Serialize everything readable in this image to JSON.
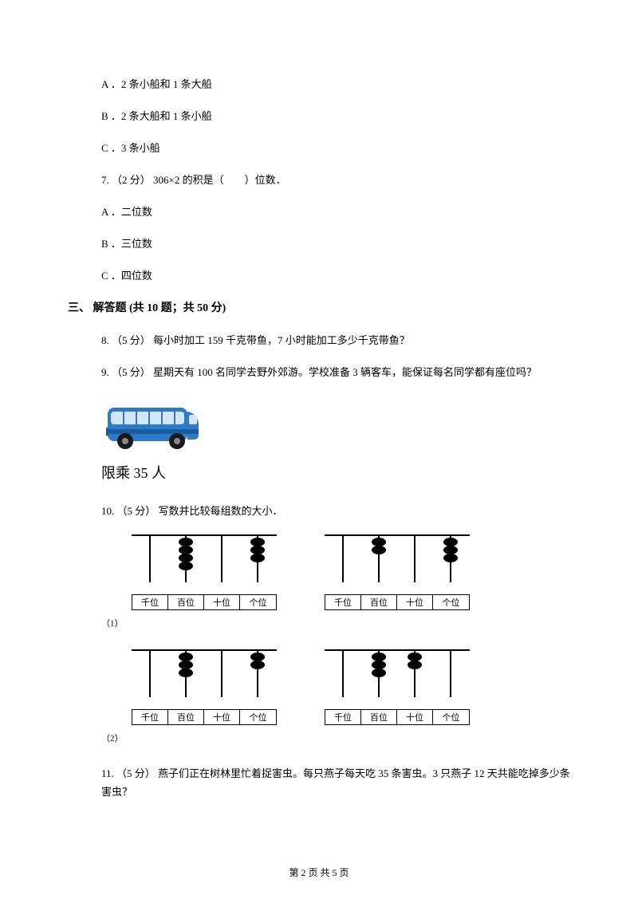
{
  "q6_options": {
    "a": "A ．2 条小船和 1 条大船",
    "b": "B ．2 条大船和 1 条小船",
    "c": "C ．3 条小船"
  },
  "q7": {
    "text": "7. （2 分） 306×2 的积是（　　）位数．",
    "options": {
      "a": "A ．二位数",
      "b": "B ．三位数",
      "c": "C ．四位数"
    }
  },
  "section3_header": "三、 解答题 (共 10 题；共 50 分)",
  "q8": "8. （5 分） 每小时加工 159 千克带鱼，7 小时能加工多少千克带鱼？",
  "q9": "9. （5 分） 星期天有 100 名同学去野外郊游。学校准备 3 辆客车，能保证每名同学都有座位吗？",
  "bus_label": "限乘 35 人",
  "q10": "10. （5 分） 写数并比较每组数的大小．",
  "sub1": "（1）",
  "sub2": "（2）",
  "q11": "11. （5 分） 燕子们正在树林里忙着捉害虫。每只燕子每天吃 35 条害虫。3 只燕子 12 天共能吃掉多少条害虫？",
  "footer": "第 2 页 共 5 页",
  "abacus_labels": [
    "千位",
    "百位",
    "十位",
    "个位"
  ],
  "abacus_data": {
    "row1": [
      [
        0,
        4,
        0,
        3
      ],
      [
        0,
        2,
        0,
        3
      ]
    ],
    "row2": [
      [
        0,
        3,
        0,
        2
      ],
      [
        0,
        3,
        2,
        0
      ]
    ]
  },
  "colors": {
    "bus_body": "#2b7bc9",
    "bus_dark": "#1a5a9e",
    "bus_window": "#d4e6f5",
    "text": "#000000",
    "background": "#ffffff"
  }
}
